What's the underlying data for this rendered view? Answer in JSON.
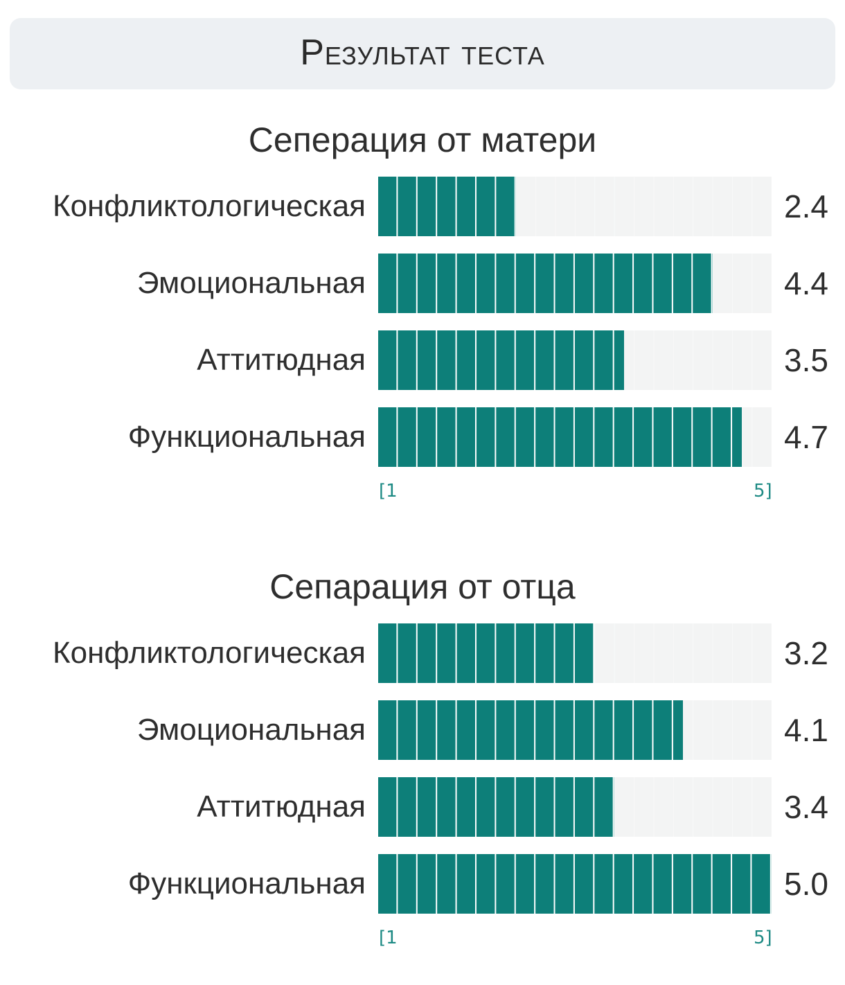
{
  "header": {
    "title": "Результат теста"
  },
  "scale": {
    "min_label": "[1",
    "max_label": "5]",
    "min": 1,
    "max": 5
  },
  "chart_data": [
    {
      "type": "bar",
      "orientation": "horizontal",
      "title": "Сеперация от матери",
      "categories": [
        "Конфликтологическая",
        "Эмоциональная",
        "Аттитюдная",
        "Функциональная"
      ],
      "values": [
        2.4,
        4.4,
        3.5,
        4.7
      ],
      "value_labels": [
        "2.4",
        "4.4",
        "3.5",
        "4.7"
      ],
      "xlim": [
        1,
        5
      ],
      "tick_labels": [
        "[1",
        "5]"
      ],
      "color": "#0d7f79"
    },
    {
      "type": "bar",
      "orientation": "horizontal",
      "title": "Сепарация от отца",
      "categories": [
        "Конфликтологическая",
        "Эмоциональная",
        "Аттитюдная",
        "Функциональная"
      ],
      "values": [
        3.2,
        4.1,
        3.4,
        5.0
      ],
      "value_labels": [
        "3.2",
        "4.1",
        "3.4",
        "5.0"
      ],
      "xlim": [
        1,
        5
      ],
      "tick_labels": [
        "[1",
        "5]"
      ],
      "color": "#0d7f79"
    }
  ]
}
